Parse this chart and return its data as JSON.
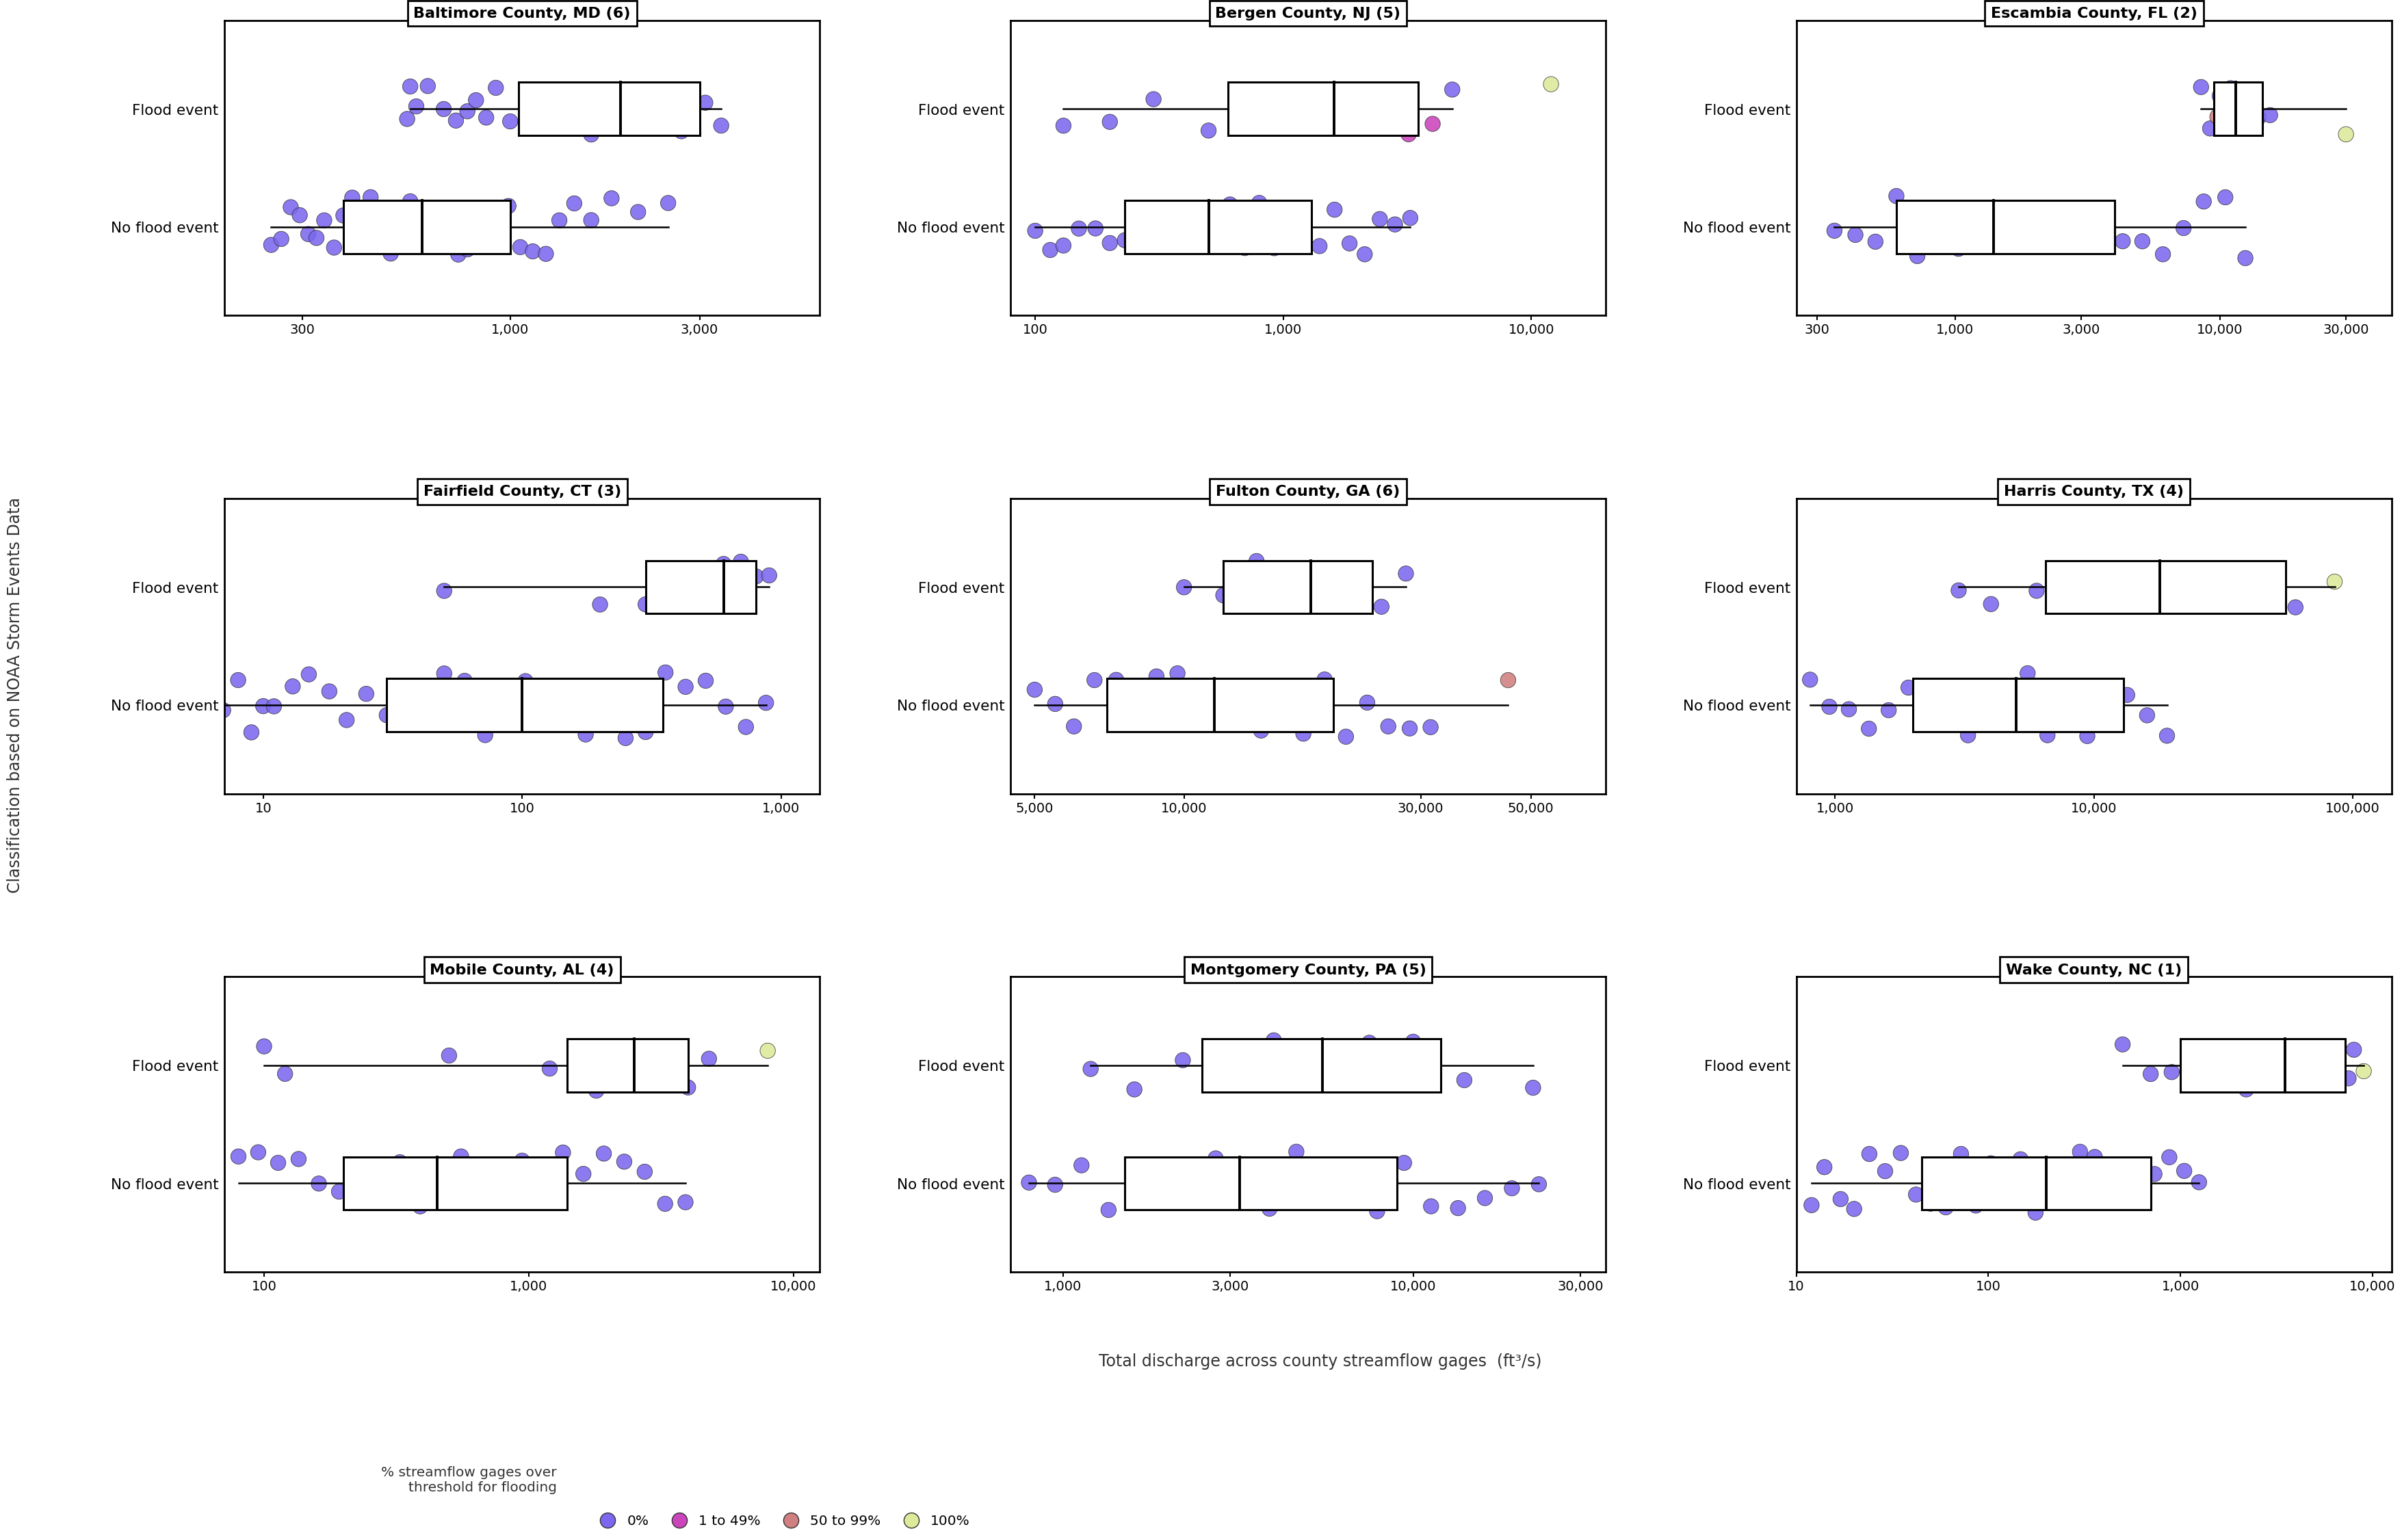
{
  "subplots": [
    {
      "title": "Baltimore County, MD (6)",
      "xlim_log": [
        2.28,
        3.78
      ],
      "xticks": [
        300,
        1000,
        3000
      ],
      "xticklabels": [
        "300",
        "1,000",
        "3,000"
      ],
      "flood_x": [
        560,
        580,
        620,
        680,
        730,
        780,
        820,
        870,
        920,
        1000,
        1100,
        1250,
        1400,
        1600,
        1900,
        2300,
        2700,
        3100,
        3400,
        550
      ],
      "flood_pct": [
        0,
        0,
        0,
        0,
        0,
        0,
        0,
        0,
        0,
        0,
        0,
        0,
        0,
        0,
        0,
        0,
        0,
        0,
        0,
        0
      ],
      "noflood_x": [
        250,
        265,
        280,
        295,
        310,
        325,
        340,
        360,
        380,
        400,
        420,
        445,
        470,
        500,
        530,
        560,
        590,
        625,
        660,
        700,
        740,
        780,
        825,
        875,
        930,
        990,
        1060,
        1140,
        1230,
        1330,
        1450,
        1600,
        1800,
        2100,
        2500
      ],
      "noflood_pct": [
        0,
        0,
        0,
        0,
        0,
        0,
        0,
        0,
        0,
        0,
        0,
        0,
        0,
        0,
        0,
        0,
        0,
        0,
        0,
        0,
        0,
        0,
        0,
        0,
        0,
        0,
        0,
        0,
        0,
        0,
        0,
        0,
        0,
        0,
        0
      ],
      "flood_box": {
        "q1": 1050,
        "q2": 1900,
        "q3": 3000,
        "whislo": 560,
        "whishi": 3400
      },
      "noflood_box": {
        "q1": 380,
        "q2": 600,
        "q3": 1000,
        "whislo": 250,
        "whishi": 2500
      }
    },
    {
      "title": "Bergen County, NJ (5)",
      "xlim_log": [
        1.9,
        4.3
      ],
      "xticks": [
        100,
        1000,
        10000
      ],
      "xticklabels": [
        "100",
        "1,000",
        "10,000"
      ],
      "flood_x": [
        130,
        200,
        300,
        500,
        700,
        900,
        1300,
        1800,
        2500,
        3200,
        4000,
        4800,
        12000
      ],
      "flood_pct": [
        0,
        0,
        0,
        0,
        1,
        1,
        1,
        1,
        1,
        1,
        1,
        0,
        3
      ],
      "noflood_x": [
        100,
        115,
        130,
        150,
        175,
        200,
        230,
        265,
        305,
        350,
        400,
        460,
        530,
        610,
        700,
        800,
        920,
        1060,
        1220,
        1400,
        1610,
        1850,
        2130,
        2450,
        2820,
        3250
      ],
      "noflood_pct": [
        0,
        0,
        0,
        0,
        0,
        0,
        0,
        0,
        0,
        0,
        0,
        0,
        0,
        0,
        0,
        0,
        0,
        0,
        0,
        0,
        0,
        0,
        0,
        0,
        0,
        0
      ],
      "flood_box": {
        "q1": 600,
        "q2": 1600,
        "q3": 3500,
        "whislo": 130,
        "whishi": 4800
      },
      "noflood_box": {
        "q1": 230,
        "q2": 500,
        "q3": 1300,
        "whislo": 100,
        "whishi": 3250
      }
    },
    {
      "title": "Escambia County, FL (2)",
      "xlim_log": [
        2.4,
        4.65
      ],
      "xticks": [
        300,
        1000,
        3000,
        10000,
        30000
      ],
      "xticklabels": [
        "300",
        "1,000",
        "3,000",
        "10,000",
        "30,000"
      ],
      "flood_x": [
        8500,
        9200,
        10000,
        11000,
        12500,
        14000,
        15500,
        9800,
        11200,
        30000
      ],
      "flood_pct": [
        0,
        0,
        0,
        0,
        0,
        0,
        0,
        2,
        2,
        3
      ],
      "noflood_x": [
        350,
        420,
        500,
        600,
        720,
        860,
        1030,
        1230,
        1470,
        1760,
        2100,
        2500,
        3000,
        3600,
        4300,
        5100,
        6100,
        7300,
        8700,
        10500,
        12500
      ],
      "noflood_pct": [
        0,
        0,
        0,
        0,
        0,
        0,
        0,
        0,
        0,
        0,
        0,
        0,
        0,
        0,
        0,
        0,
        0,
        0,
        0,
        0,
        0
      ],
      "flood_box": {
        "q1": 9500,
        "q2": 11500,
        "q3": 14500,
        "whislo": 8500,
        "whishi": 30000
      },
      "noflood_box": {
        "q1": 600,
        "q2": 1400,
        "q3": 4000,
        "whislo": 350,
        "whishi": 12500
      }
    },
    {
      "title": "Fairfield County, CT (3)",
      "xlim_log": [
        0.85,
        3.15
      ],
      "xticks": [
        10,
        100,
        1000
      ],
      "xticklabels": [
        "10",
        "100",
        "1,000"
      ],
      "flood_x": [
        50,
        200,
        300,
        500,
        600,
        700,
        800,
        900
      ],
      "flood_pct": [
        0,
        0,
        0,
        0,
        0,
        0,
        0,
        0
      ],
      "noflood_x": [
        7,
        8,
        9,
        10,
        11,
        13,
        15,
        18,
        21,
        25,
        30,
        35,
        42,
        50,
        60,
        72,
        86,
        103,
        123,
        147,
        176,
        210,
        251,
        300,
        358,
        428,
        512,
        612,
        732,
        875
      ],
      "noflood_pct": [
        0,
        0,
        0,
        0,
        0,
        0,
        0,
        0,
        0,
        0,
        0,
        0,
        0,
        0,
        0,
        0,
        0,
        0,
        0,
        0,
        0,
        0,
        0,
        0,
        0,
        0,
        0,
        0,
        0,
        0
      ],
      "flood_box": {
        "q1": 300,
        "q2": 600,
        "q3": 800,
        "whislo": 50,
        "whishi": 900
      },
      "noflood_box": {
        "q1": 30,
        "q2": 100,
        "q3": 350,
        "whislo": 7,
        "whishi": 875
      }
    },
    {
      "title": "Fulton County, GA (6)",
      "xlim_log": [
        3.65,
        4.85
      ],
      "xticks": [
        5000,
        10000,
        30000,
        50000
      ],
      "xticklabels": [
        "5,000",
        "10,000",
        "30,000",
        "50,000"
      ],
      "flood_x": [
        10000,
        12000,
        14000,
        16000,
        18000,
        20000,
        22000,
        25000,
        28000
      ],
      "flood_pct": [
        0,
        0,
        0,
        0,
        0,
        0,
        0,
        0,
        0
      ],
      "noflood_x": [
        5000,
        5500,
        6000,
        6600,
        7300,
        8000,
        8800,
        9700,
        10700,
        11800,
        13000,
        14300,
        15800,
        17400,
        19200,
        21200,
        23400,
        25800,
        28500,
        31400,
        45000
      ],
      "noflood_pct": [
        0,
        0,
        0,
        0,
        0,
        0,
        0,
        0,
        0,
        0,
        0,
        0,
        0,
        0,
        0,
        0,
        0,
        0,
        0,
        0,
        2
      ],
      "flood_box": {
        "q1": 12000,
        "q2": 18000,
        "q3": 24000,
        "whislo": 10000,
        "whishi": 28000
      },
      "noflood_box": {
        "q1": 7000,
        "q2": 11500,
        "q3": 20000,
        "whislo": 5000,
        "whishi": 45000
      }
    },
    {
      "title": "Harris County, TX (4)",
      "xlim_log": [
        2.85,
        5.15
      ],
      "xticks": [
        1000,
        10000,
        100000
      ],
      "xticklabels": [
        "1,000",
        "10,000",
        "100,000"
      ],
      "flood_x": [
        3000,
        4000,
        6000,
        8000,
        12000,
        16000,
        22000,
        30000,
        42000,
        60000,
        85000,
        12000
      ],
      "flood_pct": [
        0,
        0,
        0,
        0,
        0,
        0,
        0,
        0,
        2,
        0,
        3,
        0
      ],
      "noflood_x": [
        800,
        950,
        1130,
        1350,
        1610,
        1920,
        2290,
        2730,
        3260,
        3890,
        4640,
        5540,
        6610,
        7890,
        9420,
        11250,
        13430,
        16030,
        19140
      ],
      "noflood_pct": [
        0,
        0,
        0,
        0,
        0,
        0,
        0,
        0,
        0,
        0,
        0,
        0,
        0,
        0,
        0,
        0,
        0,
        0,
        0
      ],
      "flood_box": {
        "q1": 6500,
        "q2": 18000,
        "q3": 55000,
        "whislo": 3000,
        "whishi": 85000
      },
      "noflood_box": {
        "q1": 2000,
        "q2": 5000,
        "q3": 13000,
        "whislo": 800,
        "whishi": 19140
      }
    },
    {
      "title": "Mobile County, AL (4)",
      "xlim_log": [
        1.85,
        4.1
      ],
      "xticks": [
        100,
        1000,
        10000
      ],
      "xticklabels": [
        "100",
        "1,000",
        "10,000"
      ],
      "flood_x": [
        100,
        120,
        500,
        1200,
        1500,
        1800,
        2200,
        2700,
        3300,
        4000,
        4800,
        8000
      ],
      "flood_pct": [
        0,
        0,
        0,
        0,
        0,
        0,
        0,
        0,
        0,
        0,
        0,
        3
      ],
      "noflood_x": [
        80,
        95,
        113,
        135,
        161,
        192,
        229,
        273,
        326,
        389,
        465,
        555,
        662,
        791,
        944,
        1128,
        1347,
        1609,
        1922,
        2296,
        2743,
        3276,
        3912
      ],
      "noflood_pct": [
        0,
        0,
        0,
        0,
        0,
        0,
        0,
        0,
        0,
        0,
        0,
        0,
        0,
        0,
        0,
        0,
        0,
        0,
        0,
        0,
        0,
        0,
        0
      ],
      "flood_box": {
        "q1": 1400,
        "q2": 2500,
        "q3": 4000,
        "whislo": 100,
        "whishi": 8000
      },
      "noflood_box": {
        "q1": 200,
        "q2": 450,
        "q3": 1400,
        "whislo": 80,
        "whishi": 3912
      }
    },
    {
      "title": "Montgomery County, PA (5)",
      "xlim_log": [
        2.85,
        4.55
      ],
      "xticks": [
        1000,
        3000,
        10000,
        30000
      ],
      "xticklabels": [
        "1,000",
        "3,000",
        "10,000",
        "30,000"
      ],
      "flood_x": [
        1200,
        1600,
        2200,
        3000,
        4000,
        5500,
        7500,
        10000,
        14000,
        22000
      ],
      "flood_pct": [
        0,
        0,
        0,
        0,
        0,
        0,
        0,
        0,
        0,
        0
      ],
      "noflood_x": [
        800,
        950,
        1130,
        1350,
        1610,
        1920,
        2290,
        2730,
        3260,
        3890,
        4640,
        5540,
        6610,
        7890,
        9420,
        11250,
        13430,
        16030,
        19140,
        22860
      ],
      "noflood_pct": [
        0,
        0,
        0,
        0,
        0,
        0,
        0,
        0,
        0,
        0,
        0,
        0,
        0,
        0,
        0,
        0,
        0,
        0,
        0,
        0
      ],
      "flood_box": {
        "q1": 2500,
        "q2": 5500,
        "q3": 12000,
        "whislo": 1200,
        "whishi": 22000
      },
      "noflood_box": {
        "q1": 1500,
        "q2": 3200,
        "q3": 9000,
        "whislo": 800,
        "whishi": 22860
      }
    },
    {
      "title": "Wake County, NC (1)",
      "xlim_log": [
        1.0,
        4.1
      ],
      "xticks": [
        10,
        100,
        1000,
        10000
      ],
      "xticklabels": [
        "10",
        "100",
        "1,000",
        "10,000"
      ],
      "flood_x": [
        500,
        700,
        900,
        1200,
        1600,
        2200,
        3000,
        4000,
        5500,
        7500,
        8000,
        9000
      ],
      "flood_pct": [
        0,
        0,
        0,
        0,
        0,
        0,
        0,
        0,
        0,
        0,
        0,
        3
      ],
      "noflood_x": [
        12,
        14,
        17,
        20,
        24,
        29,
        35,
        42,
        50,
        60,
        72,
        86,
        103,
        123,
        147,
        176,
        210,
        251,
        300,
        358,
        428,
        512,
        612,
        732,
        875,
        1046,
        1250
      ],
      "noflood_pct": [
        0,
        0,
        0,
        0,
        0,
        0,
        0,
        0,
        0,
        0,
        0,
        0,
        0,
        0,
        0,
        0,
        0,
        0,
        0,
        0,
        0,
        0,
        0,
        0,
        0,
        0,
        0
      ],
      "flood_box": {
        "q1": 1000,
        "q2": 3500,
        "q3": 7200,
        "whislo": 500,
        "whishi": 9000
      },
      "noflood_box": {
        "q1": 45,
        "q2": 200,
        "q3": 700,
        "whislo": 12,
        "whishi": 1250
      }
    }
  ],
  "pct_colors": {
    "0": "#7B68EE",
    "1": "#CC44BB",
    "2": "#D08080",
    "3": "#DCEA9A"
  },
  "legend_colors": [
    "#7B68EE",
    "#CC44BB",
    "#D08080",
    "#DCEA9A"
  ],
  "legend_labels": [
    "0%",
    "1 to 49%",
    "50 to 99%",
    "100%"
  ],
  "ylabel": "Classification based on NOAA Storm Events Data",
  "xlabel": "Total discharge across county streamflow gages  (ft³/s)",
  "ytick_labels": [
    "No flood event",
    "Flood event"
  ],
  "legend_title": "% streamflow gages over\nthreshold for flooding"
}
